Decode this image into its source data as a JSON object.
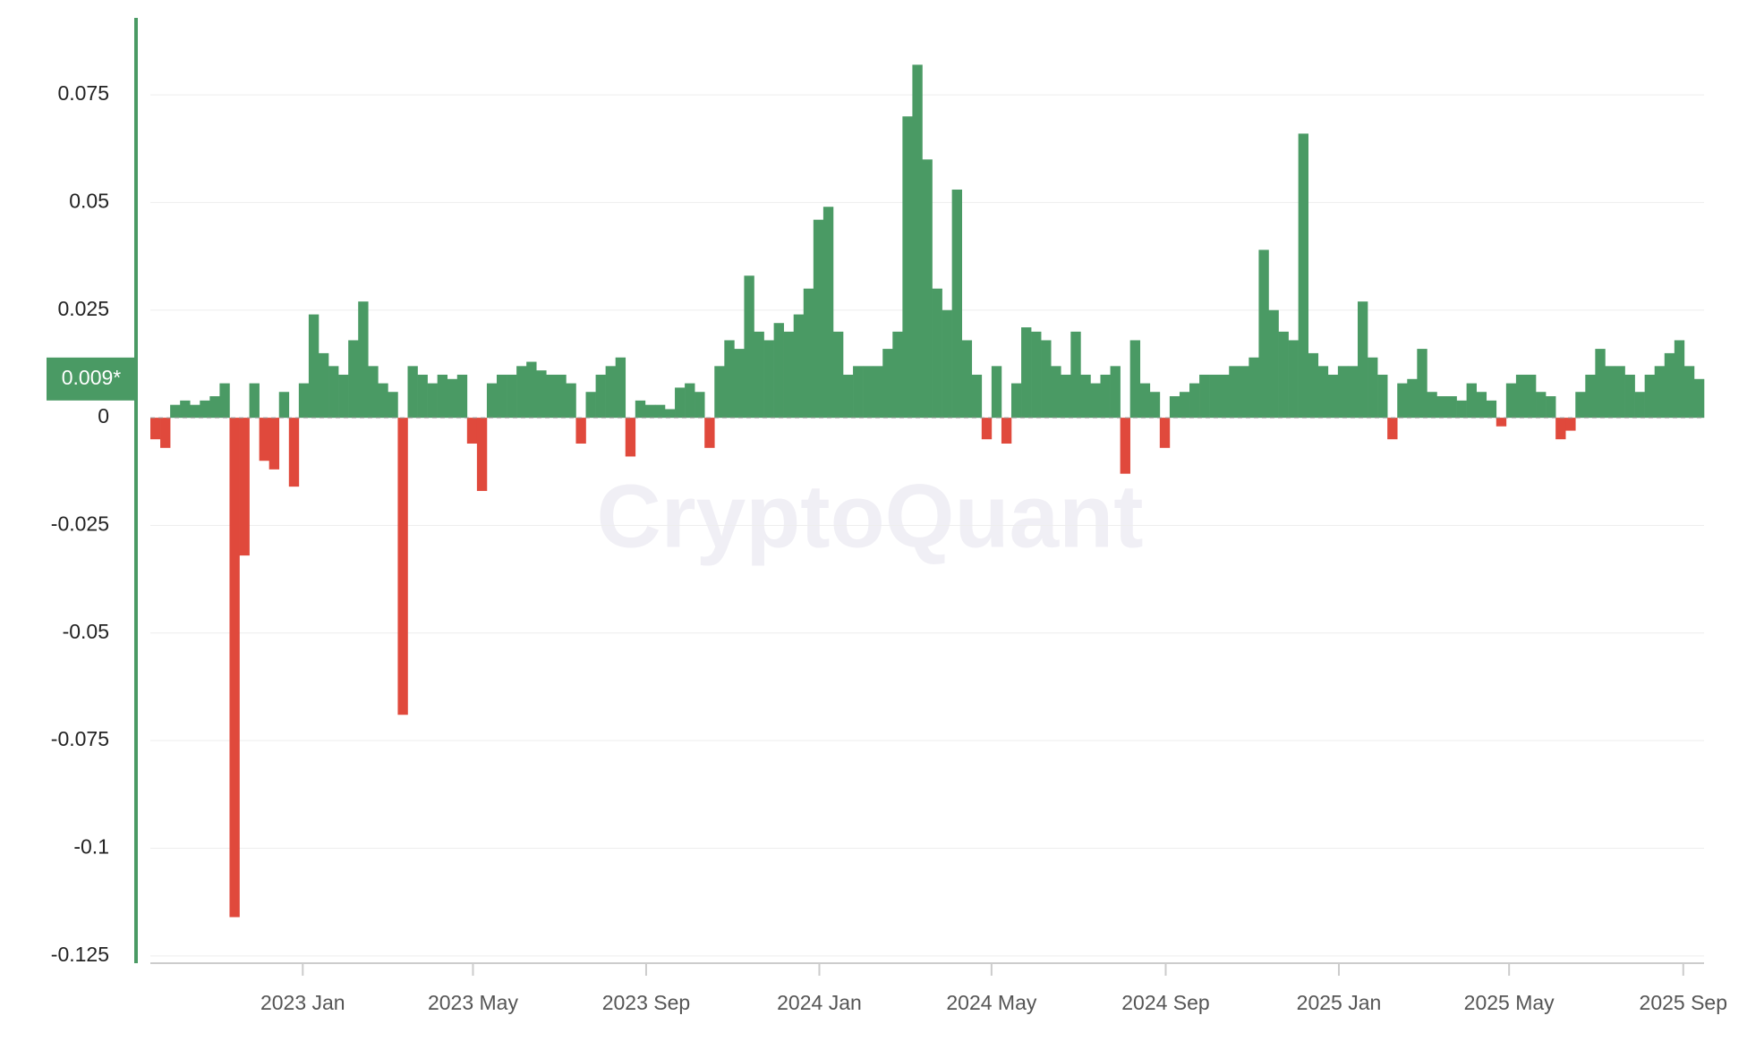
{
  "chart_data": {
    "type": "bar",
    "watermark": "CryptoQuant",
    "annotation": {
      "value": 0.009,
      "label": "0.009*"
    },
    "pos_color": "#4a9a64",
    "neg_color": "#e0493c",
    "grid": true,
    "values": [
      -0.005,
      -0.007,
      0.003,
      0.004,
      0.003,
      0.004,
      0.005,
      0.008,
      -0.116,
      -0.032,
      0.008,
      -0.01,
      -0.012,
      0.006,
      -0.016,
      0.008,
      0.024,
      0.015,
      0.012,
      0.01,
      0.018,
      0.027,
      0.012,
      0.008,
      0.006,
      -0.069,
      0.012,
      0.01,
      0.008,
      0.01,
      0.009,
      0.01,
      -0.006,
      -0.017,
      0.008,
      0.01,
      0.01,
      0.012,
      0.013,
      0.011,
      0.01,
      0.01,
      0.008,
      -0.006,
      0.006,
      0.01,
      0.012,
      0.014,
      -0.009,
      0.004,
      0.003,
      0.003,
      0.002,
      0.007,
      0.008,
      0.006,
      -0.007,
      0.012,
      0.018,
      0.016,
      0.033,
      0.02,
      0.018,
      0.022,
      0.02,
      0.024,
      0.03,
      0.046,
      0.049,
      0.02,
      0.01,
      0.012,
      0.012,
      0.012,
      0.016,
      0.02,
      0.07,
      0.082,
      0.06,
      0.03,
      0.025,
      0.053,
      0.018,
      0.01,
      -0.005,
      0.012,
      -0.006,
      0.008,
      0.021,
      0.02,
      0.018,
      0.012,
      0.01,
      0.02,
      0.01,
      0.008,
      0.01,
      0.012,
      -0.013,
      0.018,
      0.008,
      0.006,
      -0.007,
      0.005,
      0.006,
      0.008,
      0.01,
      0.01,
      0.01,
      0.012,
      0.012,
      0.014,
      0.039,
      0.025,
      0.02,
      0.018,
      0.066,
      0.015,
      0.012,
      0.01,
      0.012,
      0.012,
      0.027,
      0.014,
      0.01,
      -0.005,
      0.008,
      0.009,
      0.016,
      0.006,
      0.005,
      0.005,
      0.004,
      0.008,
      0.006,
      0.004,
      -0.002,
      0.008,
      0.01,
      0.01,
      0.006,
      0.005,
      -0.005,
      -0.003,
      0.006,
      0.01,
      0.016,
      0.012,
      0.012,
      0.01,
      0.006,
      0.01,
      0.012,
      0.015,
      0.018,
      0.012,
      0.009
    ],
    "xlim": [
      0,
      157
    ],
    "xticks": [
      {
        "value": 15.4,
        "label": "2023 Jan"
      },
      {
        "value": 32.6,
        "label": "2023 May"
      },
      {
        "value": 50.1,
        "label": "2023 Sep"
      },
      {
        "value": 67.6,
        "label": "2024 Jan"
      },
      {
        "value": 85.0,
        "label": "2024 May"
      },
      {
        "value": 102.6,
        "label": "2024 Sep"
      },
      {
        "value": 120.1,
        "label": "2025 Jan"
      },
      {
        "value": 137.3,
        "label": "2025 May"
      },
      {
        "value": 154.9,
        "label": "2025 Sep"
      }
    ],
    "ylim": [
      -0.1267,
      0.0933
    ],
    "yticks": [
      0.075,
      0.05,
      0.025,
      0,
      -0.025,
      -0.05,
      -0.075,
      -0.1,
      -0.125
    ]
  }
}
